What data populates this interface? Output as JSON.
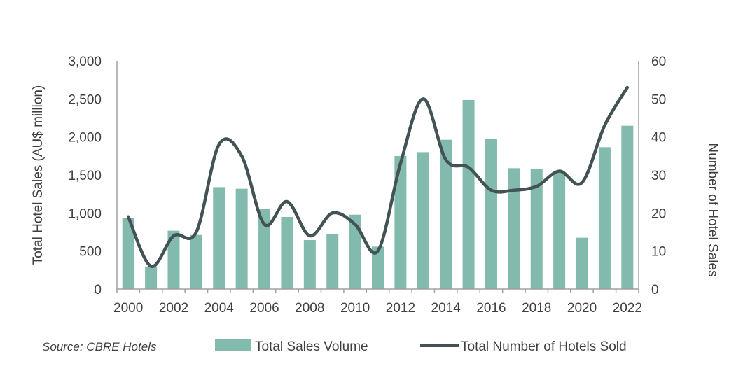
{
  "chart_data": {
    "type": "bar+line",
    "source": "Source: CBRE Hotels",
    "categories": [
      "2000",
      "2001",
      "2002",
      "2003",
      "2004",
      "2005",
      "2006",
      "2007",
      "2008",
      "2009",
      "2010",
      "2011",
      "2012",
      "2013",
      "2014",
      "2015",
      "2016",
      "2017",
      "2018",
      "2019",
      "2020",
      "2021",
      "2022"
    ],
    "x_tick_labels": [
      "2000",
      "2002",
      "2004",
      "2006",
      "2008",
      "2010",
      "2012",
      "2014",
      "2016",
      "2018",
      "2020",
      "2022"
    ],
    "ylabel_left": "Total Hotel Sales (AU$ million)",
    "ylabel_right": "Number of Hotel Sales",
    "ylim_left": [
      0,
      3000
    ],
    "ylim_right": [
      0,
      60
    ],
    "yticks_left": [
      "0",
      "500",
      "1,000",
      "1,500",
      "2,000",
      "2,500",
      "3,000"
    ],
    "yticks_right": [
      "0",
      "10",
      "20",
      "30",
      "40",
      "50",
      "60"
    ],
    "grid": false,
    "legend_position": "bottom",
    "series": [
      {
        "name": "Total Sales Volume",
        "type": "bar",
        "axis": "left",
        "color": "#82bbad",
        "values": [
          935,
          297,
          767,
          711,
          1340,
          1319,
          1049,
          948,
          644,
          727,
          978,
          558,
          1749,
          1800,
          1963,
          2485,
          1972,
          1589,
          1576,
          1533,
          675,
          1865,
          2147
        ]
      },
      {
        "name": "Total Number of Hotels Sold",
        "type": "line",
        "axis": "right",
        "color": "#435254",
        "values": [
          19,
          6,
          14,
          15,
          38,
          35,
          17,
          23,
          14,
          20,
          17,
          10,
          33,
          50,
          34,
          32,
          26,
          26,
          27,
          31,
          28,
          43,
          53
        ]
      }
    ]
  }
}
